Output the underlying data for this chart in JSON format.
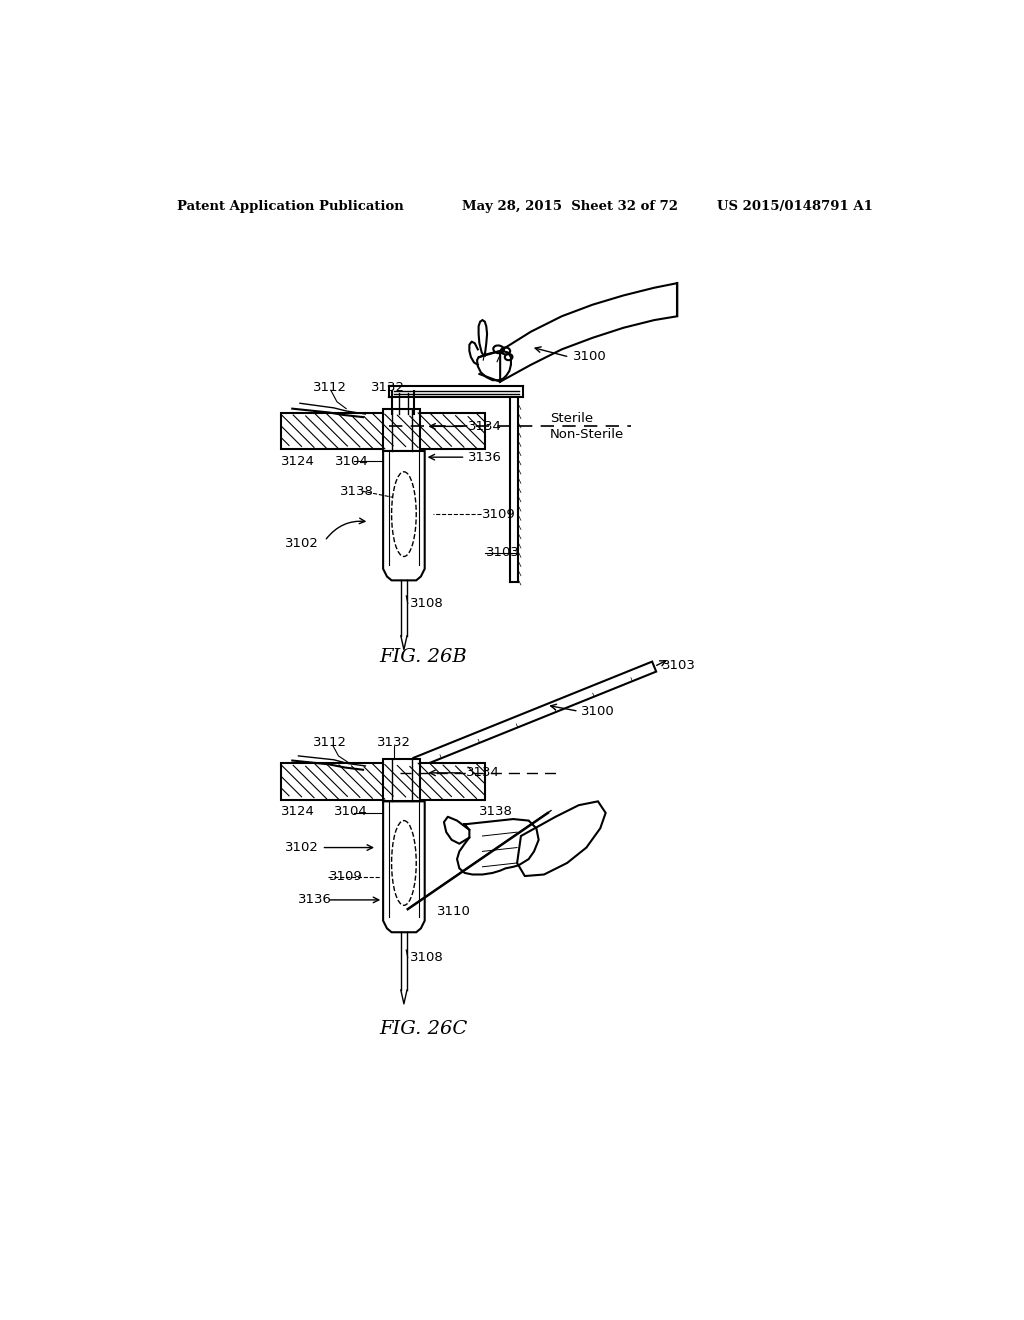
{
  "title_left": "Patent Application Publication",
  "title_mid": "May 28, 2015  Sheet 32 of 72",
  "title_right": "US 2015/0148791 A1",
  "fig26b_label": "FIG. 26B",
  "fig26c_label": "FIG. 26C",
  "bg": "#ffffff",
  "lc": "#000000"
}
